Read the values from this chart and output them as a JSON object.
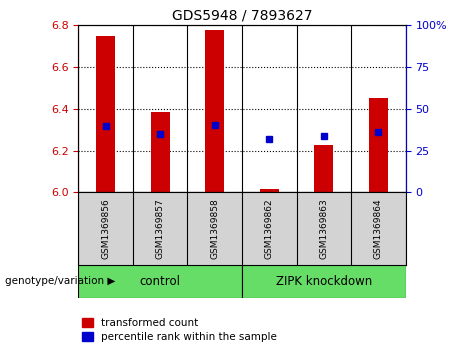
{
  "title": "GDS5948 / 7893627",
  "samples": [
    "GSM1369856",
    "GSM1369857",
    "GSM1369858",
    "GSM1369862",
    "GSM1369863",
    "GSM1369864"
  ],
  "bar_tops": [
    6.75,
    6.385,
    6.78,
    6.015,
    6.225,
    6.45
  ],
  "bar_bottoms": [
    6.0,
    6.0,
    6.0,
    6.0,
    6.0,
    6.0
  ],
  "percentile_values": [
    6.32,
    6.28,
    6.325,
    6.255,
    6.27,
    6.29
  ],
  "ylim": [
    6.0,
    6.8
  ],
  "yticks_left": [
    6.0,
    6.2,
    6.4,
    6.6,
    6.8
  ],
  "yticks_right": [
    0,
    25,
    50,
    75,
    100
  ],
  "groups": [
    {
      "label": "control",
      "indices": [
        0,
        1,
        2
      ]
    },
    {
      "label": "ZIPK knockdown",
      "indices": [
        3,
        4,
        5
      ]
    }
  ],
  "bar_color": "#cc0000",
  "dot_color": "#0000cc",
  "sample_bg_color": "#d3d3d3",
  "group_bg_color": "#66dd66",
  "left_tick_color": "#cc0000",
  "right_tick_color": "#0000cc",
  "legend_red_label": "transformed count",
  "legend_blue_label": "percentile rank within the sample",
  "genotype_label": "genotype/variation"
}
